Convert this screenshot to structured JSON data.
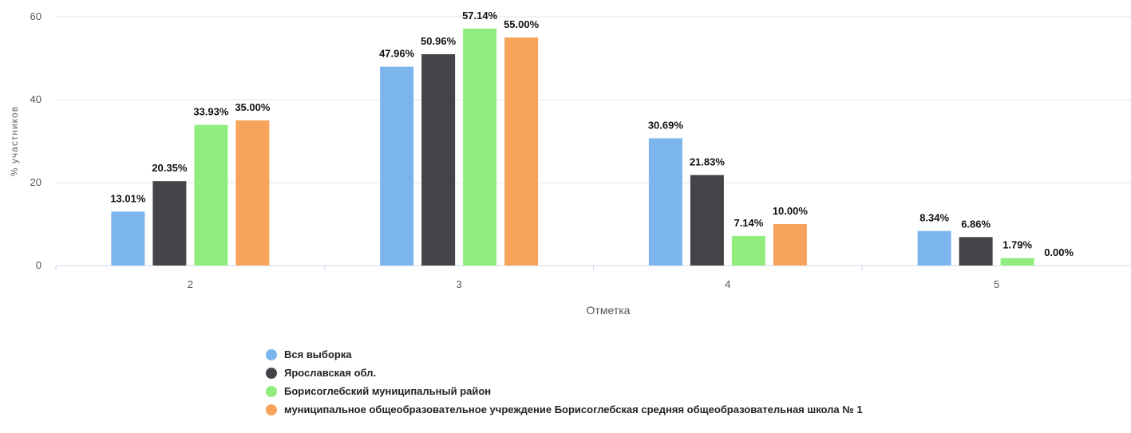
{
  "chart_data": {
    "type": "bar",
    "xlabel": "Отметка",
    "ylabel": "% участников",
    "ylim": [
      0,
      60
    ],
    "yticks": [
      0,
      20,
      40,
      60
    ],
    "categories": [
      "2",
      "3",
      "4",
      "5"
    ],
    "series": [
      {
        "name": "Вся выборка",
        "color": "#7cb5ec",
        "values": [
          13.01,
          47.96,
          30.69,
          8.34
        ],
        "labels": [
          "13.01%",
          "47.96%",
          "30.69%",
          "8.34%"
        ]
      },
      {
        "name": "Ярославская обл.",
        "color": "#434348",
        "values": [
          20.35,
          50.96,
          21.83,
          6.86
        ],
        "labels": [
          "20.35%",
          "50.96%",
          "21.83%",
          "6.86%"
        ]
      },
      {
        "name": "Борисоглебский муниципальный район",
        "color": "#90ed7d",
        "values": [
          33.93,
          57.14,
          7.14,
          1.79
        ],
        "labels": [
          "33.93%",
          "57.14%",
          "7.14%",
          "1.79%"
        ]
      },
      {
        "name": "муниципальное общеобразовательное учреждение Борисоглебская средняя общеобразовательная школа № 1",
        "color": "#f7a35c",
        "values": [
          35.0,
          55.0,
          10.0,
          0.0
        ],
        "labels": [
          "35.00%",
          "55.00%",
          "10.00%",
          "0.00%"
        ]
      }
    ],
    "grid": true,
    "legend_position": "bottom"
  }
}
